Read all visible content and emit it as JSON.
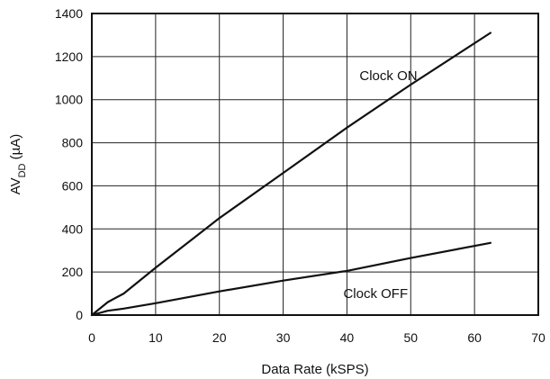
{
  "chart_data": {
    "type": "line",
    "title": "",
    "xlabel": "Data Rate (kSPS)",
    "ylabel": {
      "prefix": "AV",
      "subscript": "DD",
      "unit": " (µA)"
    },
    "xlim": [
      0,
      70
    ],
    "ylim": [
      0,
      1400
    ],
    "x_ticks": [
      0,
      10,
      20,
      30,
      40,
      50,
      60,
      70
    ],
    "y_ticks": [
      0,
      200,
      400,
      600,
      800,
      1000,
      1200,
      1400
    ],
    "grid": true,
    "series": [
      {
        "name": "Clock ON",
        "x": [
          0,
          2.5,
          5,
          10,
          20,
          30,
          40,
          50,
          62.5
        ],
        "y": [
          0,
          60,
          100,
          220,
          450,
          660,
          870,
          1070,
          1310
        ]
      },
      {
        "name": "Clock OFF",
        "x": [
          0,
          2.5,
          5,
          10,
          20,
          30,
          40,
          50,
          62.5
        ],
        "y": [
          0,
          20,
          30,
          55,
          110,
          160,
          205,
          265,
          335
        ]
      }
    ]
  }
}
